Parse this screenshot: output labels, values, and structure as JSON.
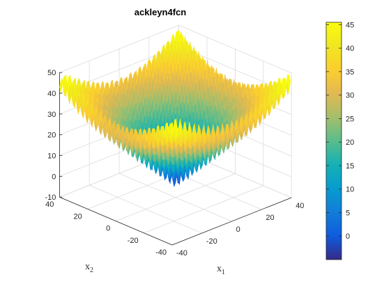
{
  "chart_data": {
    "type": "surface",
    "title": "ackleyn4fcn",
    "xlabel": "x",
    "xlabel_subscript": "1",
    "ylabel": "x",
    "ylabel_subscript": "2",
    "xlim": [
      -40,
      40
    ],
    "ylim": [
      -40,
      40
    ],
    "zlim": [
      -10,
      50
    ],
    "x_ticks": [
      "-40",
      "-20",
      "0",
      "20",
      "40"
    ],
    "y_ticks": [
      "-40",
      "-20",
      "0",
      "20",
      "40"
    ],
    "z_ticks": [
      "-10",
      "0",
      "10",
      "20",
      "30",
      "40",
      "50"
    ],
    "colorbar": {
      "range": [
        -5,
        45.5
      ],
      "ticks": [
        "0",
        "5",
        "10",
        "15",
        "20",
        "25",
        "30",
        "35",
        "40",
        "45"
      ],
      "colormap": "parula"
    },
    "grid": true,
    "surface_summary": {
      "min_value_near_center": -4.6,
      "max_value_near_corners": 45
    }
  }
}
